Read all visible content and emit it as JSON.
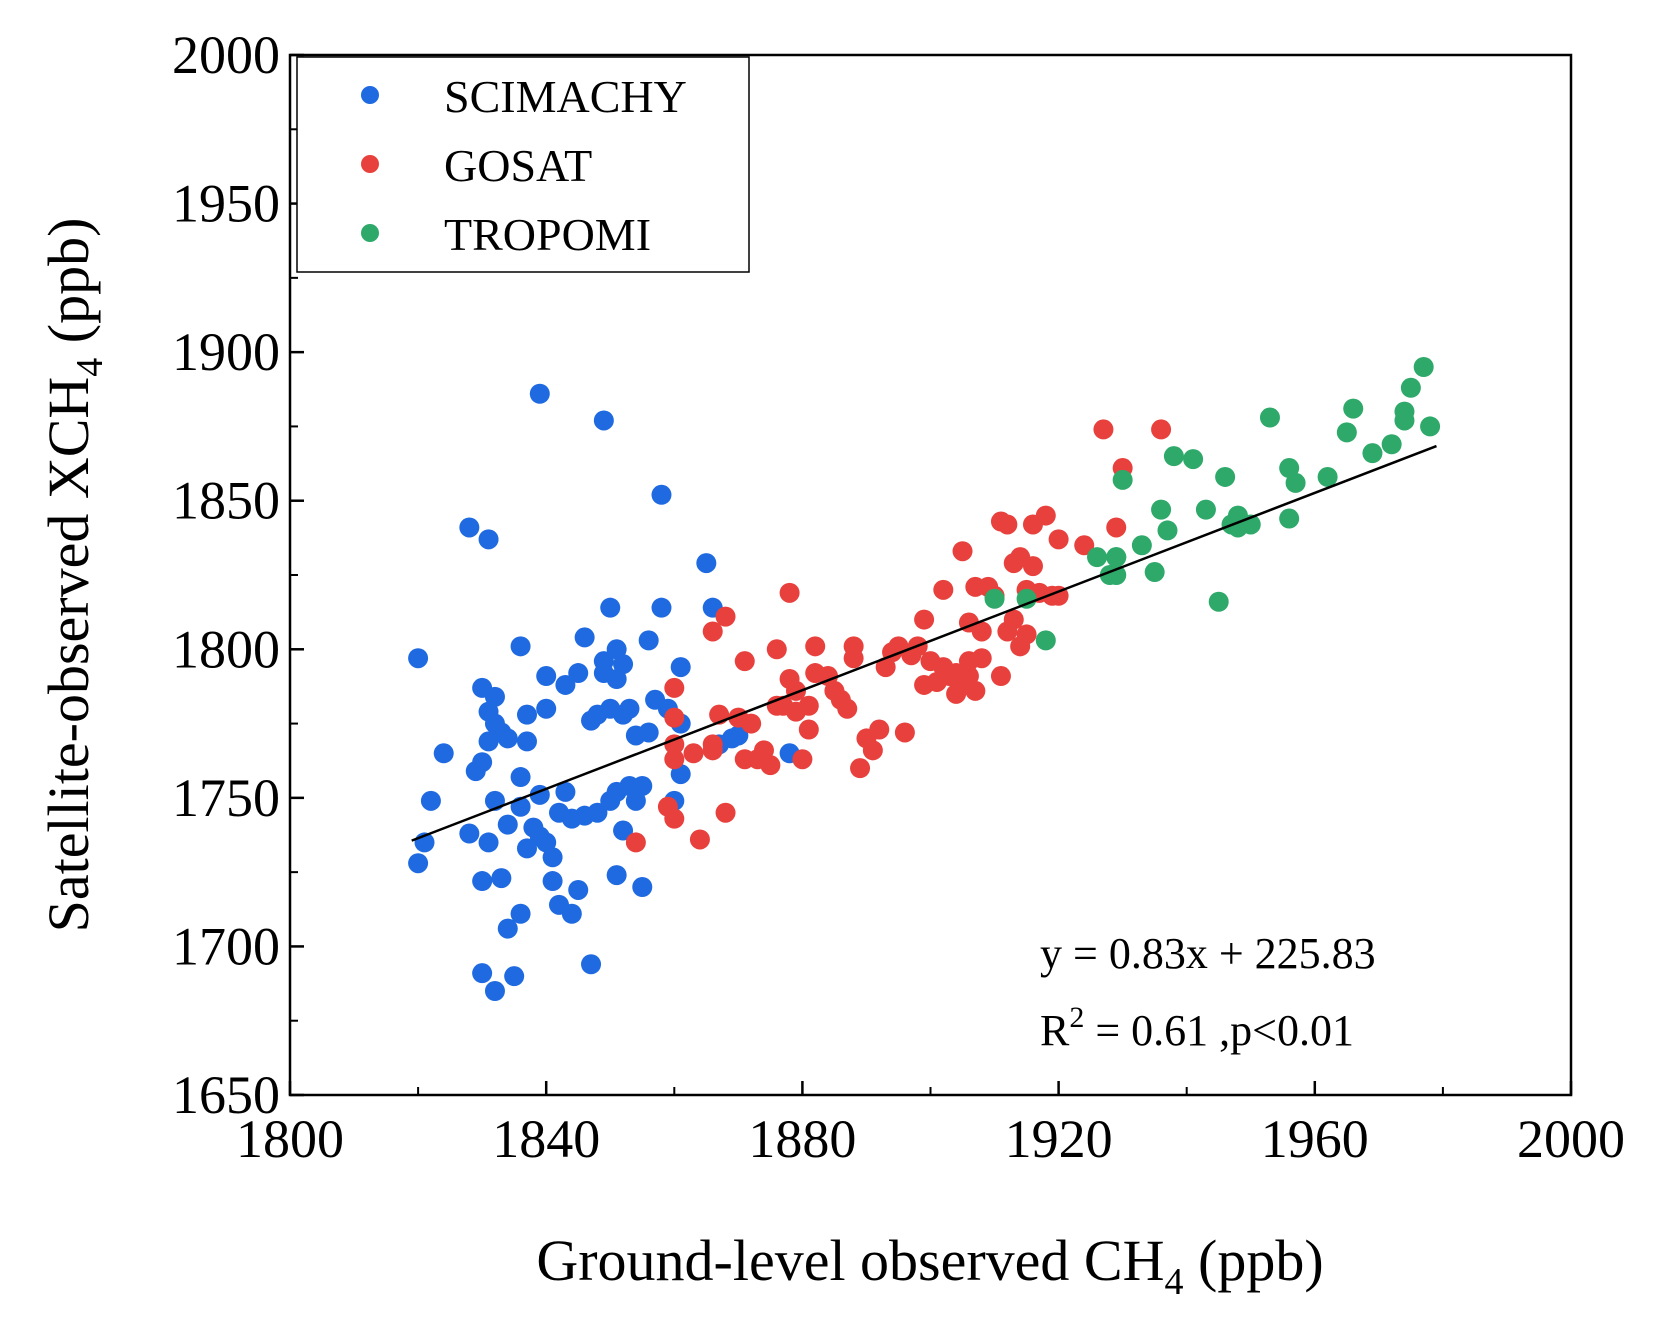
{
  "chart_data": {
    "type": "scatter",
    "xlabel": {
      "main": "Ground-level observed CH",
      "sub": "4",
      "tail": " (ppb)"
    },
    "ylabel": {
      "main": "Satellite-observed XCH",
      "sub": "4",
      "tail": " (ppb)"
    },
    "xlim": [
      1800,
      2000
    ],
    "ylim": [
      1650,
      2000
    ],
    "xticks": [
      "1800",
      "1840",
      "1880",
      "1920",
      "1960",
      "2000"
    ],
    "yticks": [
      "1650",
      "1700",
      "1750",
      "1800",
      "1850",
      "1900",
      "1950",
      "2000"
    ],
    "legend_position": "top-left",
    "grid": false,
    "series": [
      {
        "name": "SCIMACHY",
        "color": "#1f6ae0",
        "points": [
          [
            1820,
            1797
          ],
          [
            1820,
            1728
          ],
          [
            1821,
            1735
          ],
          [
            1822,
            1749
          ],
          [
            1824,
            1765
          ],
          [
            1828,
            1841
          ],
          [
            1828,
            1738
          ],
          [
            1829,
            1759
          ],
          [
            1830,
            1787
          ],
          [
            1830,
            1762
          ],
          [
            1830,
            1722
          ],
          [
            1830,
            1691
          ],
          [
            1831,
            1837
          ],
          [
            1831,
            1779
          ],
          [
            1831,
            1769
          ],
          [
            1831,
            1735
          ],
          [
            1832,
            1784
          ],
          [
            1832,
            1775
          ],
          [
            1832,
            1749
          ],
          [
            1832,
            1685
          ],
          [
            1833,
            1772
          ],
          [
            1833,
            1723
          ],
          [
            1834,
            1770
          ],
          [
            1834,
            1741
          ],
          [
            1834,
            1706
          ],
          [
            1835,
            1690
          ],
          [
            1836,
            1801
          ],
          [
            1836,
            1757
          ],
          [
            1836,
            1747
          ],
          [
            1836,
            1711
          ],
          [
            1837,
            1778
          ],
          [
            1837,
            1769
          ],
          [
            1837,
            1733
          ],
          [
            1838,
            1740
          ],
          [
            1839,
            1751
          ],
          [
            1839,
            1737
          ],
          [
            1839,
            1886
          ],
          [
            1840,
            1791
          ],
          [
            1840,
            1780
          ],
          [
            1840,
            1735
          ],
          [
            1841,
            1730
          ],
          [
            1841,
            1722
          ],
          [
            1842,
            1714
          ],
          [
            1842,
            1745
          ],
          [
            1843,
            1752
          ],
          [
            1843,
            1788
          ],
          [
            1844,
            1711
          ],
          [
            1844,
            1743
          ],
          [
            1845,
            1792
          ],
          [
            1845,
            1719
          ],
          [
            1846,
            1804
          ],
          [
            1846,
            1744
          ],
          [
            1847,
            1776
          ],
          [
            1847,
            1694
          ],
          [
            1848,
            1778
          ],
          [
            1848,
            1745
          ],
          [
            1849,
            1792
          ],
          [
            1849,
            1796
          ],
          [
            1849,
            1877
          ],
          [
            1850,
            1814
          ],
          [
            1850,
            1780
          ],
          [
            1850,
            1749
          ],
          [
            1851,
            1800
          ],
          [
            1851,
            1790
          ],
          [
            1851,
            1752
          ],
          [
            1851,
            1724
          ],
          [
            1852,
            1795
          ],
          [
            1852,
            1778
          ],
          [
            1852,
            1739
          ],
          [
            1853,
            1780
          ],
          [
            1853,
            1754
          ],
          [
            1854,
            1771
          ],
          [
            1854,
            1749
          ],
          [
            1855,
            1754
          ],
          [
            1855,
            1720
          ],
          [
            1856,
            1803
          ],
          [
            1856,
            1772
          ],
          [
            1857,
            1783
          ],
          [
            1858,
            1852
          ],
          [
            1858,
            1814
          ],
          [
            1859,
            1780
          ],
          [
            1860,
            1749
          ],
          [
            1861,
            1794
          ],
          [
            1861,
            1775
          ],
          [
            1861,
            1758
          ],
          [
            1865,
            1829
          ],
          [
            1866,
            1814
          ],
          [
            1867,
            1768
          ],
          [
            1869,
            1770
          ],
          [
            1870,
            1771
          ],
          [
            1878,
            1765
          ]
        ]
      },
      {
        "name": "GOSAT",
        "color": "#e8403c",
        "points": [
          [
            1854,
            1735
          ],
          [
            1859,
            1747
          ],
          [
            1860,
            1787
          ],
          [
            1860,
            1777
          ],
          [
            1860,
            1768
          ],
          [
            1860,
            1763
          ],
          [
            1860,
            1743
          ],
          [
            1863,
            1765
          ],
          [
            1864,
            1736
          ],
          [
            1866,
            1768
          ],
          [
            1866,
            1806
          ],
          [
            1866,
            1766
          ],
          [
            1867,
            1778
          ],
          [
            1868,
            1745
          ],
          [
            1868,
            1811
          ],
          [
            1870,
            1777
          ],
          [
            1871,
            1796
          ],
          [
            1871,
            1763
          ],
          [
            1872,
            1775
          ],
          [
            1873,
            1763
          ],
          [
            1874,
            1766
          ],
          [
            1875,
            1761
          ],
          [
            1876,
            1781
          ],
          [
            1876,
            1800
          ],
          [
            1877,
            1781
          ],
          [
            1878,
            1819
          ],
          [
            1878,
            1790
          ],
          [
            1879,
            1779
          ],
          [
            1879,
            1786
          ],
          [
            1880,
            1763
          ],
          [
            1881,
            1773
          ],
          [
            1881,
            1781
          ],
          [
            1882,
            1792
          ],
          [
            1882,
            1801
          ],
          [
            1884,
            1791
          ],
          [
            1885,
            1786
          ],
          [
            1886,
            1783
          ],
          [
            1887,
            1780
          ],
          [
            1888,
            1801
          ],
          [
            1888,
            1797
          ],
          [
            1889,
            1760
          ],
          [
            1890,
            1770
          ],
          [
            1891,
            1766
          ],
          [
            1892,
            1773
          ],
          [
            1893,
            1794
          ],
          [
            1894,
            1799
          ],
          [
            1895,
            1801
          ],
          [
            1896,
            1772
          ],
          [
            1897,
            1798
          ],
          [
            1898,
            1801
          ],
          [
            1899,
            1810
          ],
          [
            1899,
            1788
          ],
          [
            1900,
            1796
          ],
          [
            1901,
            1789
          ],
          [
            1902,
            1820
          ],
          [
            1902,
            1794
          ],
          [
            1903,
            1791
          ],
          [
            1904,
            1785
          ],
          [
            1904,
            1792
          ],
          [
            1905,
            1833
          ],
          [
            1905,
            1789
          ],
          [
            1906,
            1791
          ],
          [
            1906,
            1796
          ],
          [
            1906,
            1809
          ],
          [
            1907,
            1821
          ],
          [
            1907,
            1786
          ],
          [
            1908,
            1806
          ],
          [
            1908,
            1797
          ],
          [
            1909,
            1821
          ],
          [
            1910,
            1818
          ],
          [
            1911,
            1791
          ],
          [
            1911,
            1843
          ],
          [
            1912,
            1806
          ],
          [
            1912,
            1842
          ],
          [
            1913,
            1810
          ],
          [
            1913,
            1829
          ],
          [
            1914,
            1831
          ],
          [
            1914,
            1801
          ],
          [
            1915,
            1805
          ],
          [
            1915,
            1820
          ],
          [
            1916,
            1828
          ],
          [
            1916,
            1842
          ],
          [
            1917,
            1819
          ],
          [
            1918,
            1845
          ],
          [
            1919,
            1818
          ],
          [
            1920,
            1837
          ],
          [
            1920,
            1818
          ],
          [
            1924,
            1835
          ],
          [
            1927,
            1874
          ],
          [
            1929,
            1841
          ],
          [
            1930,
            1861
          ],
          [
            1936,
            1874
          ]
        ]
      },
      {
        "name": "TROPOMI",
        "color": "#2ea96a",
        "points": [
          [
            1910,
            1817
          ],
          [
            1915,
            1817
          ],
          [
            1918,
            1803
          ],
          [
            1926,
            1831
          ],
          [
            1928,
            1825
          ],
          [
            1929,
            1831
          ],
          [
            1929,
            1825
          ],
          [
            1929,
            1831
          ],
          [
            1930,
            1857
          ],
          [
            1933,
            1835
          ],
          [
            1935,
            1826
          ],
          [
            1936,
            1847
          ],
          [
            1937,
            1840
          ],
          [
            1938,
            1865
          ],
          [
            1941,
            1864
          ],
          [
            1943,
            1847
          ],
          [
            1945,
            1816
          ],
          [
            1946,
            1858
          ],
          [
            1947,
            1842
          ],
          [
            1948,
            1841
          ],
          [
            1948,
            1845
          ],
          [
            1950,
            1842
          ],
          [
            1953,
            1878
          ],
          [
            1956,
            1844
          ],
          [
            1956,
            1861
          ],
          [
            1957,
            1856
          ],
          [
            1962,
            1858
          ],
          [
            1965,
            1873
          ],
          [
            1966,
            1881
          ],
          [
            1969,
            1866
          ],
          [
            1972,
            1869
          ],
          [
            1974,
            1880
          ],
          [
            1974,
            1877
          ],
          [
            1975,
            1888
          ],
          [
            1977,
            1895
          ],
          [
            1978,
            1875
          ]
        ]
      }
    ],
    "fit": {
      "slope": 0.83,
      "intercept": 225.83,
      "x_range": [
        1819,
        1979
      ],
      "color": "#000000"
    },
    "annotations": {
      "equation": "y = 0.83x + 225.83",
      "r2_prefix": "R",
      "r2_sup": "2",
      "r2_tail": " = 0.61 ,p<0.01"
    }
  }
}
